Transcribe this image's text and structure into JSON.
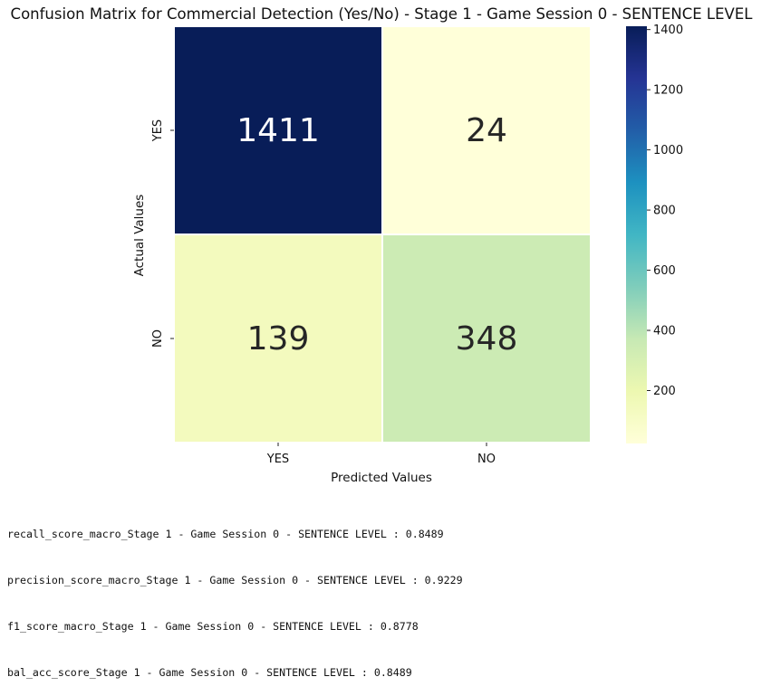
{
  "chart_data": {
    "type": "heatmap",
    "title": "Confusion Matrix for Commercial Detection (Yes/No) - Stage 1 - Game Session 0 - SENTENCE LEVEL",
    "xlabel": "Predicted Values",
    "ylabel": "Actual Values",
    "x_categories": [
      "YES",
      "NO"
    ],
    "y_categories": [
      "YES",
      "NO"
    ],
    "matrix": [
      [
        1411,
        24
      ],
      [
        139,
        348
      ]
    ],
    "colormap": "YlGnBu",
    "colorbar": {
      "ticks": [
        200,
        400,
        600,
        800,
        1000,
        1200,
        1400
      ],
      "tick_labels": [
        "200",
        "400",
        "600",
        "800",
        "1000",
        "1200",
        "1400"
      ],
      "range": [
        24,
        1411
      ]
    },
    "grid": false,
    "legend": "colorbar-right"
  },
  "metrics": [
    "recall_score_macro_Stage 1 - Game Session 0 - SENTENCE LEVEL : 0.8489",
    "precision_score_macro_Stage 1 - Game Session 0 - SENTENCE LEVEL : 0.9229",
    "f1_score_macro_Stage 1 - Game Session 0 - SENTENCE LEVEL : 0.8778",
    "bal_acc_score_Stage 1 - Game Session 0 - SENTENCE LEVEL : 0.8489"
  ]
}
